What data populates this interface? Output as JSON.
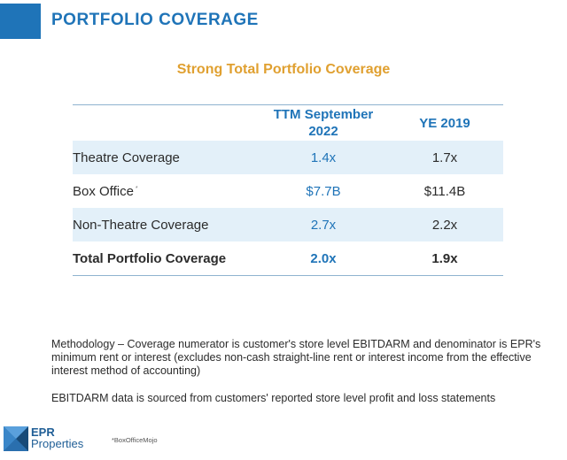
{
  "header": {
    "title": "PORTFOLIO COVERAGE",
    "accent_color": "#1f74b8"
  },
  "subtitle": "Strong Total Portfolio Coverage",
  "table": {
    "columns": [
      "",
      "TTM September 2022",
      "YE 2019"
    ],
    "rows": [
      {
        "label": "Theatre Coverage",
        "ttm": "1.4x",
        "ye": "1.7x"
      },
      {
        "label": "Box Office",
        "footnote_marker": "*",
        "ttm": "$7.7B",
        "ye": "$11.4B"
      },
      {
        "label": "Non-Theatre Coverage",
        "ttm": "2.7x",
        "ye": "2.2x"
      },
      {
        "label": "Total Portfolio Coverage",
        "ttm": "2.0x",
        "ye": "1.9x"
      }
    ]
  },
  "notes": {
    "methodology": "Methodology – Coverage numerator is customer's store level EBITDARM and denominator is EPR's minimum rent or interest (excludes non-cash straight-line rent or interest income from the effective interest method of accounting)",
    "source": "EBITDARM data is sourced from customers' reported store level profit and loss statements"
  },
  "footer": {
    "logo_line1": "EPR",
    "logo_line2": "Properties",
    "source_note": "*BoxOfficeMojo"
  }
}
